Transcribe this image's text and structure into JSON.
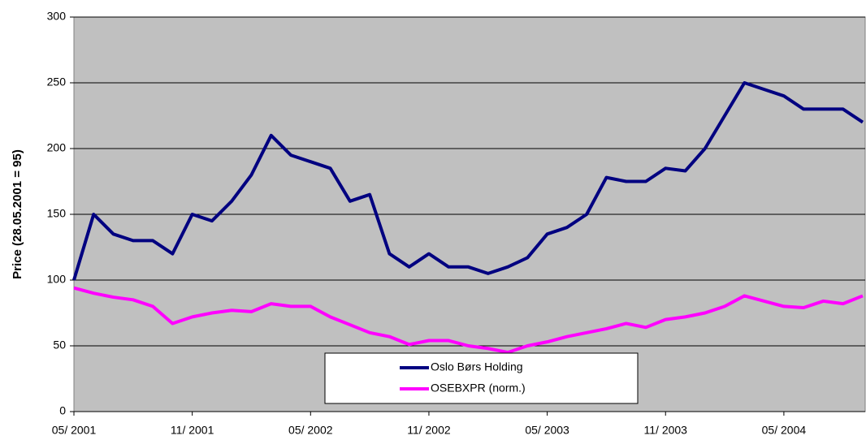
{
  "chart_data": {
    "type": "line",
    "y_label": "Price (28.05.2001 = 95)",
    "x": [
      "2001-05",
      "2001-06",
      "2001-07",
      "2001-08",
      "2001-09",
      "2001-10",
      "2001-11",
      "2001-12",
      "2002-01",
      "2002-02",
      "2002-03",
      "2002-04",
      "2002-05",
      "2002-06",
      "2002-07",
      "2002-08",
      "2002-09",
      "2002-10",
      "2002-11",
      "2002-12",
      "2003-01",
      "2003-02",
      "2003-03",
      "2003-04",
      "2003-05",
      "2003-06",
      "2003-07",
      "2003-08",
      "2003-09",
      "2003-10",
      "2003-11",
      "2003-12",
      "2004-01",
      "2004-02",
      "2004-03",
      "2004-04",
      "2004-05",
      "2004-06",
      "2004-07",
      "2004-08",
      "2004-09"
    ],
    "series": [
      {
        "name": "Oslo Børs Holding",
        "color": "#000080",
        "values": [
          100,
          150,
          135,
          130,
          130,
          120,
          150,
          145,
          160,
          180,
          210,
          195,
          190,
          185,
          160,
          165,
          120,
          110,
          120,
          110,
          110,
          105,
          110,
          117,
          135,
          140,
          150,
          178,
          175,
          175,
          185,
          183,
          200,
          225,
          250,
          245,
          240,
          230,
          230,
          230,
          220
        ]
      },
      {
        "name": "OSEBXPR (norm.)",
        "color": "#ff00ff",
        "values": [
          94,
          90,
          87,
          85,
          80,
          67,
          72,
          75,
          77,
          76,
          82,
          80,
          80,
          72,
          66,
          60,
          57,
          51,
          54,
          54,
          50,
          48,
          45,
          50,
          53,
          57,
          60,
          63,
          67,
          64,
          70,
          72,
          75,
          80,
          88,
          84,
          80,
          79,
          84,
          82,
          88
        ]
      }
    ],
    "xlim": [
      "2001-05",
      "2004-09"
    ],
    "xticks": [
      {
        "value": "2001-05",
        "label": "05/ 2001"
      },
      {
        "value": "2001-11",
        "label": "11/ 2001"
      },
      {
        "value": "2002-05",
        "label": "05/ 2002"
      },
      {
        "value": "2002-11",
        "label": "11/ 2002"
      },
      {
        "value": "2003-05",
        "label": "05/ 2003"
      },
      {
        "value": "2003-11",
        "label": "11/ 2003"
      },
      {
        "value": "2004-05",
        "label": "05/ 2004"
      }
    ],
    "ylim": [
      0,
      300
    ],
    "yticks": [
      0,
      50,
      100,
      150,
      200,
      250,
      300
    ],
    "grid": true,
    "legend": "bottom"
  }
}
